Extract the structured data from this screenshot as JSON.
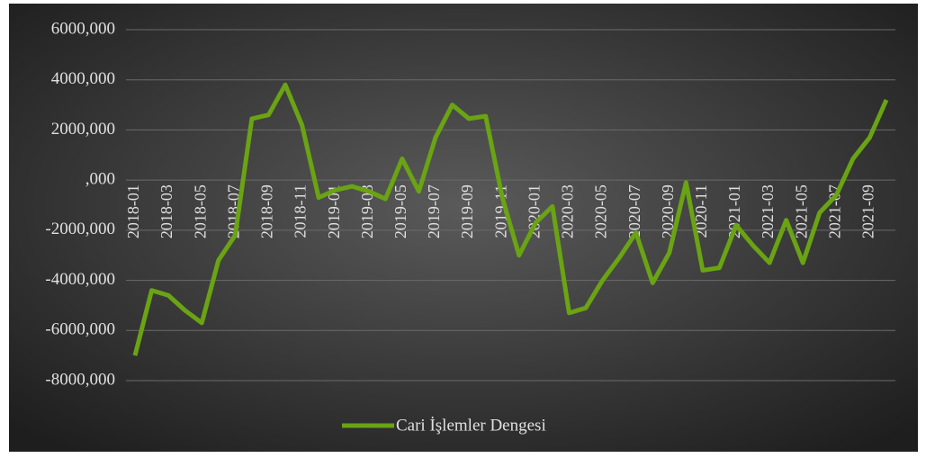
{
  "chart_data": {
    "type": "line",
    "categories": [
      "2018-01",
      null,
      "2018-03",
      null,
      "2018-05",
      null,
      "2018-07",
      null,
      "2018-09",
      null,
      "2018-11",
      null,
      "2019-01",
      null,
      "2019-03",
      null,
      "2019-05",
      null,
      "2019-07",
      null,
      "2019-09",
      null,
      "2019-11",
      null,
      "2020-01",
      null,
      "2020-03",
      null,
      "2020-05",
      null,
      "2020-07",
      null,
      "2020-09",
      null,
      "2020-11",
      null,
      "2021-01",
      null,
      "2021-03",
      null,
      "2021-05",
      null,
      "2021-07",
      null,
      "2021-09",
      null
    ],
    "series": [
      {
        "name": "Cari İşlemler Dengesi",
        "color": "#6aa313",
        "values": [
          -7000,
          -4400,
          -4600,
          -5200,
          -5700,
          -3200,
          -2200,
          2450,
          2600,
          3800,
          2200,
          -700,
          -400,
          -250,
          -450,
          -750,
          850,
          -450,
          1700,
          3000,
          2450,
          2550,
          -700,
          -3000,
          -1700,
          -1050,
          -5300,
          -5100,
          -4000,
          -3100,
          -2100,
          -4100,
          -2900,
          -100,
          -3600,
          -3500,
          -1800,
          -2600,
          -3300,
          -1600,
          -3300,
          -1300,
          -600,
          850,
          1700,
          3200
        ]
      }
    ],
    "ylim": [
      -8000,
      6000
    ],
    "yticks": [
      {
        "value": -8000,
        "label": "-8000,000"
      },
      {
        "value": -6000,
        "label": "-6000,000"
      },
      {
        "value": -4000,
        "label": "-4000,000"
      },
      {
        "value": -2000,
        "label": "-2000,000"
      },
      {
        "value": 0,
        "label": ",000"
      },
      {
        "value": 2000,
        "label": "2000,000"
      },
      {
        "value": 4000,
        "label": "4000,000"
      },
      {
        "value": 6000,
        "label": "6000,000"
      }
    ],
    "grid": true,
    "legend": "bottom"
  }
}
